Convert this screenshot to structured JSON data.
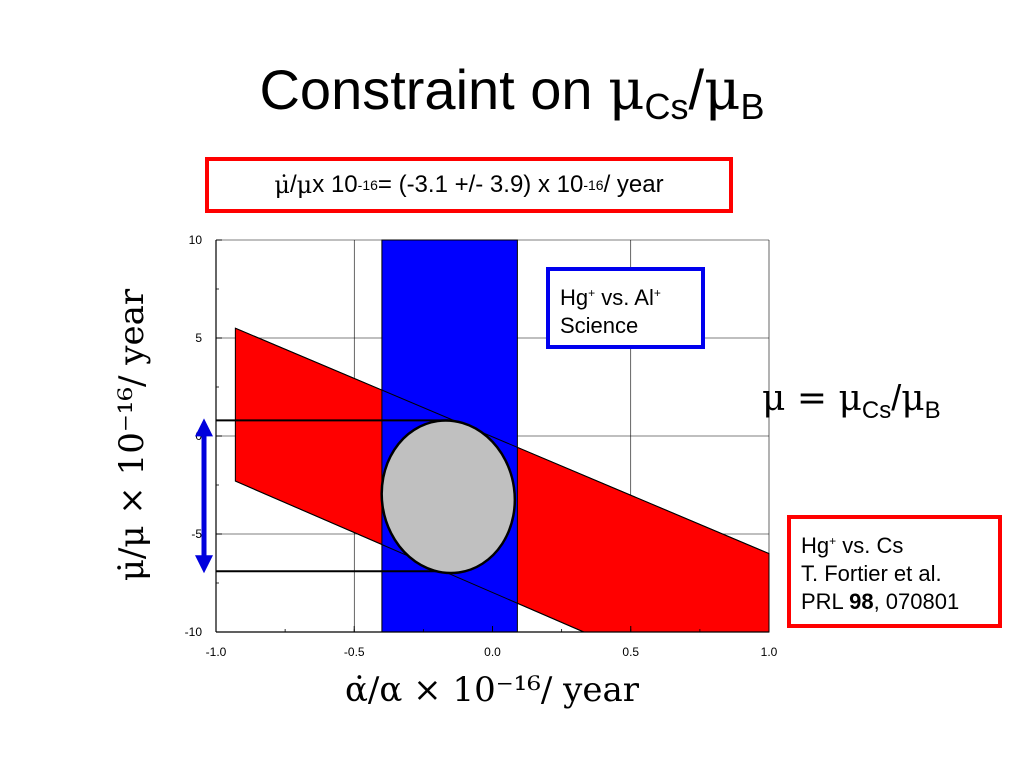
{
  "slide": {
    "title_text": "Constraint on ",
    "title_mu1": "μ",
    "title_sub1": "Cs",
    "title_sep": "/",
    "title_mu2": "μ",
    "title_sub2": "B"
  },
  "result": {
    "mu_dot": "μ̇",
    "part1": " / ",
    "mu": "μ",
    "part2": " x 10",
    "exp1": "-16",
    "part3": " = (-3.1 +/- 3.9) x 10",
    "exp2": "-16",
    "part4": " / year"
  },
  "mu_definition": {
    "lhs": "μ = ",
    "mu1": "μ",
    "sub1": "Cs",
    "sep": "/",
    "mu2": "μ",
    "sub2": "B"
  },
  "hg_al_box": {
    "line1_a": "Hg",
    "line1_sup_a": "+",
    "line1_b": " vs. Al",
    "line1_sup_b": "+",
    "line2": "Science"
  },
  "hg_cs_box": {
    "line1_a": "Hg",
    "line1_sup": "+",
    "line1_b": " vs. Cs",
    "line2": "T. Fortier et al.",
    "line3_a": "PRL ",
    "line3_bold": "98",
    "line3_b": ", 070801"
  },
  "colors": {
    "hg_cs_band": "#ff0000",
    "hg_al_band": "#0000ff",
    "combined_ellipse": "#c0c0c0",
    "arrow": "#0000dd"
  },
  "chart_data": {
    "type": "area",
    "xlabel": "α̇/α × 10⁻¹⁶/ year",
    "ylabel": "μ̇/μ × 10⁻¹⁶/ year",
    "xlim": [
      -1.0,
      1.0
    ],
    "ylim": [
      -10,
      10
    ],
    "xticks": [
      "-1.0",
      "-0.5",
      "0.0",
      "0.5",
      "1.0"
    ],
    "yticks": [
      "10",
      "5",
      "0",
      "-5",
      "-10"
    ],
    "xtick_values": [
      -1.0,
      -0.5,
      0.0,
      0.5,
      1.0
    ],
    "ytick_values": [
      10,
      5,
      0,
      -5,
      -10
    ],
    "grid": true,
    "hg_cs_band": {
      "upper": [
        [
          -0.93,
          5.5
        ],
        [
          1.0,
          -6.0
        ]
      ],
      "lower": [
        [
          -0.93,
          -2.3
        ],
        [
          0.33,
          -10.0
        ]
      ]
    },
    "hg_al_band": {
      "x_min": -0.4,
      "x_max": 0.09,
      "y_min": -10,
      "y_max": 10
    },
    "ellipse": {
      "center": [
        -0.16,
        -3.1
      ],
      "semi_x": 0.24,
      "semi_y": 3.9
    },
    "mu_interval": {
      "upper": 0.8,
      "lower": -6.9,
      "y_at_upper_start": -0.93
    },
    "arrow": {
      "y_from": 0.8,
      "y_to": -6.9,
      "x": -1.0
    }
  }
}
